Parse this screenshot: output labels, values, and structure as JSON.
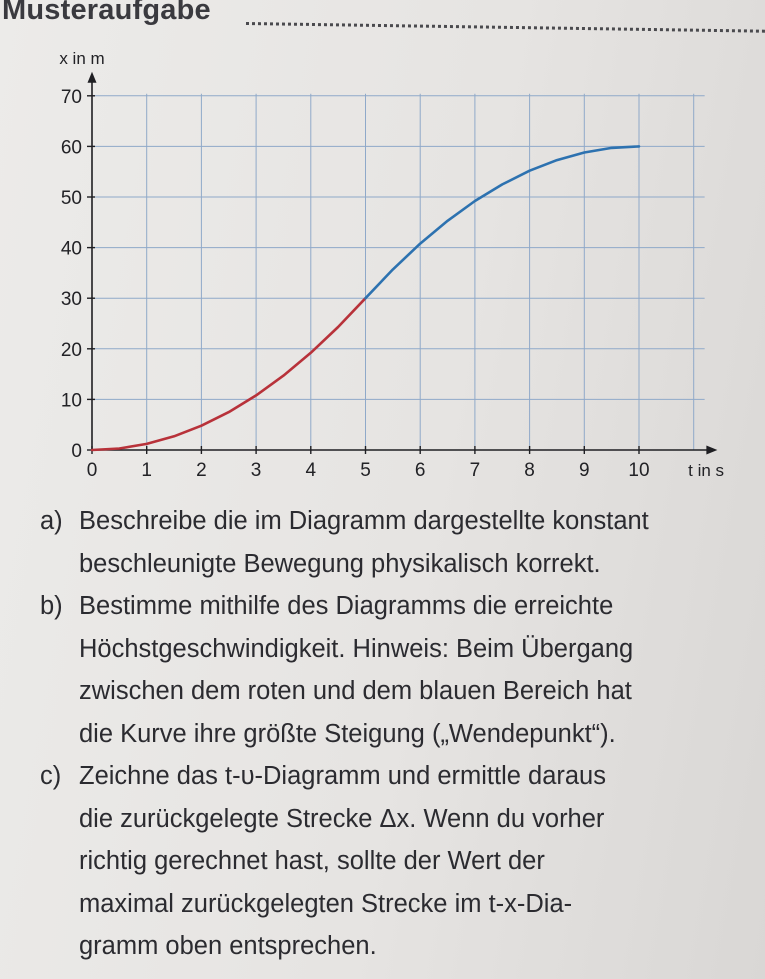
{
  "heading": "Musteraufgabe",
  "chart_data": {
    "type": "line",
    "title": "",
    "xlabel": "t in s",
    "ylabel": "x in m",
    "xlim": [
      0,
      10
    ],
    "ylim": [
      0,
      70
    ],
    "x_ticks": [
      "0",
      "1",
      "2",
      "3",
      "4",
      "5",
      "6",
      "7",
      "8",
      "9",
      "10"
    ],
    "y_ticks": [
      "0",
      "10",
      "20",
      "30",
      "40",
      "50",
      "60",
      "70"
    ],
    "grid": true,
    "series": [
      {
        "color": "#b8323a",
        "x": [
          0,
          0.5,
          1,
          1.5,
          2,
          2.5,
          3,
          3.5,
          4,
          4.5,
          5
        ],
        "y": [
          0,
          0.3,
          1.2,
          2.7,
          4.8,
          7.5,
          10.8,
          14.7,
          19.2,
          24.3,
          30
        ]
      },
      {
        "color": "#2d72b0",
        "x": [
          5,
          5.5,
          6,
          6.5,
          7,
          7.5,
          8,
          8.5,
          9,
          9.5,
          10
        ],
        "y": [
          30,
          35.7,
          40.8,
          45.3,
          49.2,
          52.5,
          55.2,
          57.3,
          58.8,
          59.7,
          60
        ]
      }
    ]
  },
  "tasks": [
    {
      "letter": "a)",
      "lines": [
        "Beschreibe die im Diagramm dargestellte konstant",
        "beschleunigte Bewegung physikalisch korrekt."
      ]
    },
    {
      "letter": "b)",
      "lines": [
        "Bestimme mithilfe des Diagramms die erreichte",
        "Höchstgeschwindigkeit. Hinweis: Beim Übergang",
        "zwischen dem roten und dem blauen Bereich hat",
        "die Kurve ihre größte Steigung („Wendepunkt“)."
      ]
    },
    {
      "letter": "c)",
      "lines": [
        "Zeichne das t-υ-Diagramm und ermittle daraus",
        "die zurückgelegte Strecke Δx. Wenn du vorher",
        "richtig gerechnet hast, sollte der Wert der",
        "maximal zurückgelegten Strecke im t-x-Dia-",
        "gramm oben entsprechen."
      ]
    }
  ]
}
